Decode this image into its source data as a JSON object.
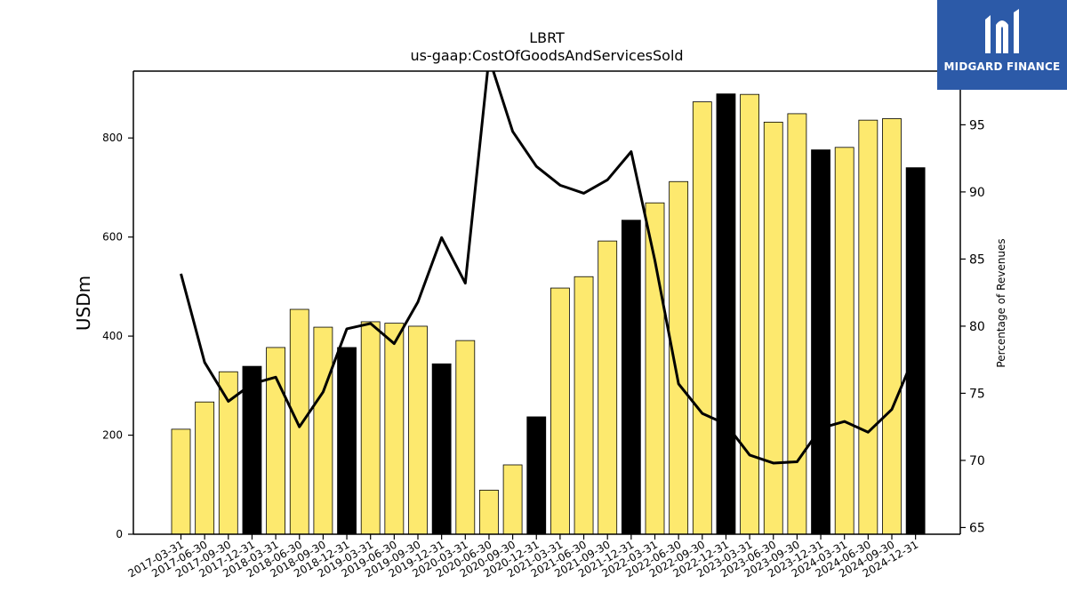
{
  "brand": {
    "name": "MIDGARD FINANCE",
    "icon": "midgard-logo-icon"
  },
  "chart_data": {
    "type": "bar",
    "title": "LBRT",
    "subtitle": "us-gaap:CostOfGoodsAndServicesSold",
    "ylabel": "USDm",
    "y2label": "Percentage of Revenues",
    "ylim": [
      0,
      935
    ],
    "y2lim": [
      64.5,
      99
    ],
    "yticks": [
      0,
      200,
      400,
      600,
      800
    ],
    "y2ticks": [
      65,
      70,
      75,
      80,
      85,
      90,
      95
    ],
    "categories": [
      "2017-03-31",
      "2017-06-30",
      "2017-09-30",
      "2017-12-31",
      "2018-03-31",
      "2018-06-30",
      "2018-09-30",
      "2018-12-31",
      "2019-03-31",
      "2019-06-30",
      "2019-09-30",
      "2019-12-31",
      "2020-03-31",
      "2020-06-30",
      "2020-09-30",
      "2020-12-31",
      "2021-03-31",
      "2021-06-30",
      "2021-09-30",
      "2021-12-31",
      "2022-03-31",
      "2022-06-30",
      "2022-09-30",
      "2022-12-31",
      "2023-03-31",
      "2023-06-30",
      "2023-09-30",
      "2023-12-31",
      "2024-03-31",
      "2024-06-30",
      "2024-09-30",
      "2024-12-31"
    ],
    "series": [
      {
        "values": [
          212,
          267,
          328,
          339,
          377,
          454,
          418,
          377,
          429,
          426,
          420,
          344,
          391,
          89,
          140,
          237,
          497,
          520,
          592,
          634,
          669,
          712,
          873,
          889,
          888,
          832,
          849,
          776,
          781,
          836,
          839,
          740
        ],
        "kind": "bar",
        "colors": [
          "#fde96e",
          "#fde96e",
          "#fde96e",
          "#000000",
          "#fde96e",
          "#fde96e",
          "#fde96e",
          "#000000",
          "#fde96e",
          "#fde96e",
          "#fde96e",
          "#000000",
          "#fde96e",
          "#fde96e",
          "#fde96e",
          "#000000",
          "#fde96e",
          "#fde96e",
          "#fde96e",
          "#000000",
          "#fde96e",
          "#fde96e",
          "#fde96e",
          "#000000",
          "#fde96e",
          "#fde96e",
          "#fde96e",
          "#000000",
          "#fde96e",
          "#fde96e",
          "#fde96e",
          "#000000"
        ]
      },
      {
        "values": [
          83.9,
          77.3,
          74.4,
          75.7,
          76.2,
          72.5,
          75.1,
          79.8,
          80.2,
          78.7,
          81.8,
          86.6,
          83.2,
          100.0,
          94.5,
          91.9,
          90.5,
          89.9,
          90.9,
          93.0,
          84.9,
          75.7,
          73.5,
          72.7,
          70.4,
          69.8,
          69.9,
          72.4,
          72.9,
          72.1,
          73.8,
          78.0
        ],
        "kind": "line",
        "axis": "secondary",
        "color": "#000000"
      }
    ]
  }
}
